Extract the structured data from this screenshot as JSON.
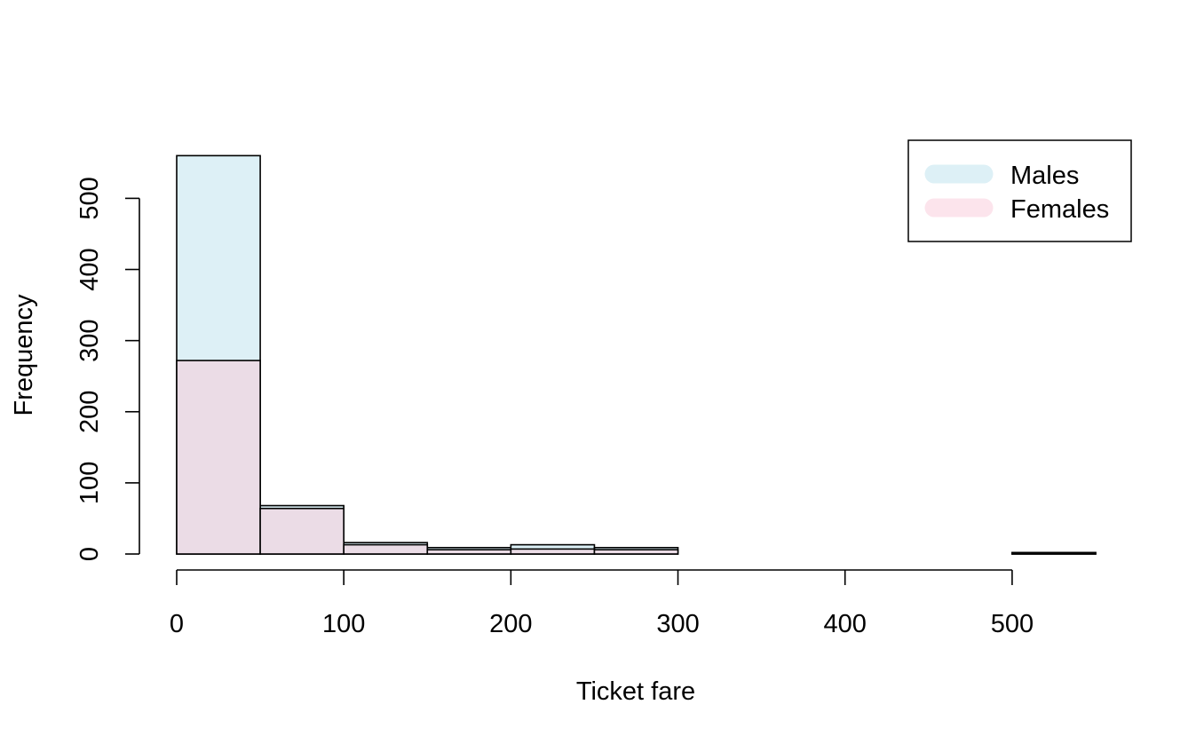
{
  "chart_data": {
    "type": "bar",
    "subtype": "overlaid-histogram",
    "title": "",
    "xlabel": "Ticket fare",
    "ylabel": "Frequency",
    "xlim": [
      0,
      550
    ],
    "ylim": [
      0,
      560
    ],
    "x_ticks": [
      0,
      100,
      200,
      300,
      400,
      500
    ],
    "y_ticks": [
      0,
      100,
      200,
      300,
      400,
      500
    ],
    "bin_edges": [
      0,
      50,
      100,
      150,
      200,
      250,
      300,
      350,
      400,
      450,
      500,
      550
    ],
    "series": [
      {
        "name": "Males",
        "color": "#DDF0F6",
        "values": [
          560,
          68,
          16,
          9,
          13,
          9,
          0,
          0,
          0,
          0,
          2
        ]
      },
      {
        "name": "Females",
        "color": "#EBDCE6",
        "values": [
          272,
          64,
          13,
          6,
          7,
          6,
          0,
          0,
          0,
          0,
          2
        ]
      }
    ],
    "legend": {
      "position": "top-right",
      "entries": [
        {
          "label": "Males",
          "color": "#DDF0F6"
        },
        {
          "label": "Females",
          "color": "#FCE4EC"
        }
      ]
    },
    "grid": false
  }
}
